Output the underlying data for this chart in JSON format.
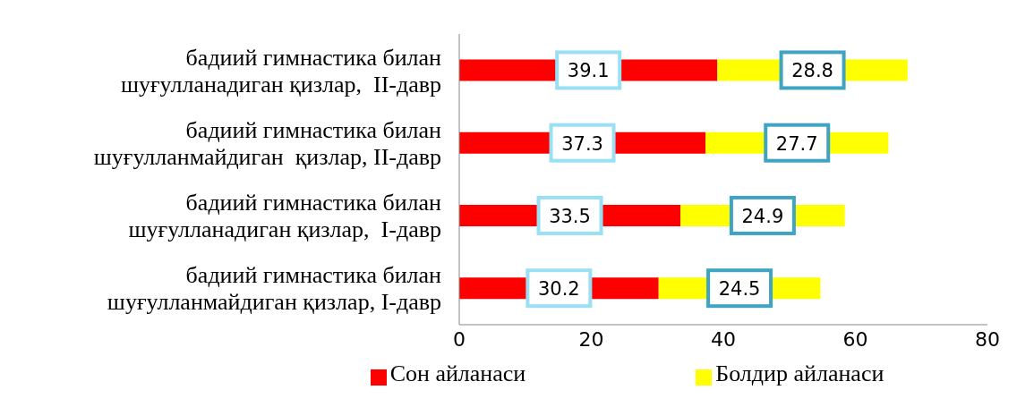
{
  "chart_data": {
    "type": "bar",
    "orientation": "horizontal",
    "stacked": true,
    "categories": [
      "бадиий гимнастика билан шуғулланадиган қизлар,  II-давр",
      "бадиий гимнастика билан шуғулланмайдиган  қизлар, II-давр",
      "бадиий гимнастика билан шуғулланадиган қизлар,  I-давр",
      "бадиий гимнастика билан шуғулланмайдиган қизлар, I-давр"
    ],
    "series": [
      {
        "name": "Сон айланаси",
        "color": "#ff0000",
        "values": [
          39.1,
          37.3,
          33.5,
          30.2
        ]
      },
      {
        "name": "Болдир айланаси",
        "color": "#ffff00",
        "values": [
          28.8,
          27.7,
          24.9,
          24.5
        ]
      }
    ],
    "xlim": [
      0,
      80
    ],
    "xticks": [
      0,
      20,
      40,
      60,
      80
    ],
    "data_labels": true,
    "legend": "bottom",
    "grid": false
  }
}
